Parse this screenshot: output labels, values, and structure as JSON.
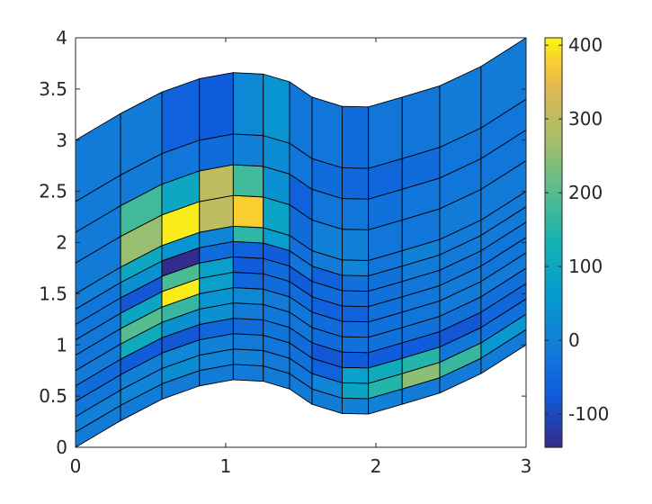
{
  "chart_data": {
    "type": "heatmap",
    "description_kind": "pcolor on a warped grid",
    "grid": false,
    "colormap": "parula",
    "xlim": [
      0,
      3
    ],
    "ylim": [
      0,
      4
    ],
    "xticks": [
      "0",
      "1",
      "2",
      "3"
    ],
    "yticks": [
      "0",
      "0.5",
      "1",
      "1.5",
      "2",
      "2.5",
      "3",
      "3.5",
      "4"
    ],
    "colorbar": {
      "limits": [
        -145,
        410
      ],
      "ticks": [
        "-100",
        "0",
        "100",
        "200",
        "300",
        "400"
      ],
      "tick_values": [
        -100,
        0,
        100,
        200,
        300,
        400
      ]
    },
    "mesh": {
      "x_columns": [
        0,
        0.3,
        0.575,
        0.825,
        1.05,
        1.25,
        1.425,
        1.575,
        1.775,
        1.95,
        2.175,
        2.425,
        2.7,
        3.0
      ],
      "bottom_y": [
        0,
        0.26,
        0.47,
        0.6,
        0.66,
        0.645,
        0.57,
        0.42,
        0.33,
        0.325,
        0.42,
        0.53,
        0.72,
        1.0
      ],
      "row_fractions": [
        0,
        0.05,
        0.1,
        0.15,
        0.2,
        0.25,
        0.3,
        0.35,
        0.4,
        0.45,
        0.5,
        0.6,
        0.7,
        0.8,
        1.0
      ],
      "height": 3,
      "values": [
        [
          -10,
          -10,
          -10,
          -10,
          -10,
          -10,
          -10,
          -10,
          0,
          0,
          -10,
          -10,
          -10
        ],
        [
          0,
          10,
          30,
          5,
          0,
          -10,
          -20,
          10,
          90,
          150,
          250,
          170,
          60
        ],
        [
          -20,
          0,
          20,
          0,
          -15,
          -20,
          -30,
          -60,
          80,
          110,
          150,
          -20,
          -30
        ],
        [
          -40,
          -70,
          -80,
          -50,
          -45,
          -25,
          -40,
          -80,
          -70,
          -70,
          -70,
          -80,
          -50
        ],
        [
          -10,
          110,
          40,
          40,
          -10,
          -20,
          -20,
          -40,
          -30,
          -30,
          -30,
          -30,
          -30
        ],
        [
          -20,
          200,
          170,
          50,
          20,
          -10,
          -20,
          -40,
          -40,
          -30,
          -20,
          -10,
          -10
        ],
        [
          -15,
          90,
          400,
          80,
          -50,
          -40,
          -40,
          -60,
          -60,
          -30,
          -20,
          -10,
          -20
        ],
        [
          -20,
          -80,
          190,
          80,
          -70,
          -40,
          -70,
          -40,
          -40,
          -30,
          -20,
          -20,
          -20
        ],
        [
          -20,
          40,
          -140,
          -40,
          -60,
          -70,
          -20,
          -60,
          -30,
          -30,
          -10,
          -10,
          -10
        ],
        [
          0,
          100,
          50,
          10,
          160,
          70,
          -30,
          -10,
          10,
          -20,
          0,
          -10,
          -10
        ],
        [
          -10,
          260,
          400,
          300,
          380,
          90,
          -40,
          0,
          0,
          -20,
          -20,
          -10,
          -10
        ],
        [
          -10,
          180,
          100,
          300,
          180,
          40,
          -60,
          -20,
          -20,
          -30,
          -20,
          -20,
          -20
        ],
        [
          -10,
          -10,
          -20,
          -40,
          0,
          30,
          -20,
          -40,
          -50,
          -50,
          -40,
          -20,
          -20
        ],
        [
          -10,
          -10,
          -60,
          -70,
          20,
          50,
          -20,
          -20,
          -40,
          -20,
          -20,
          -10,
          -10
        ]
      ]
    }
  }
}
